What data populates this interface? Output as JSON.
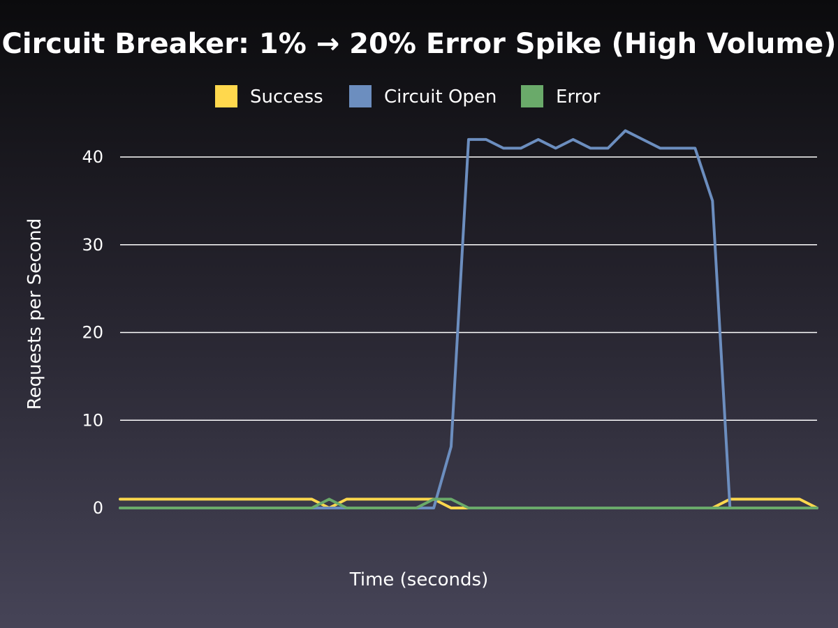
{
  "chart_data": {
    "type": "line",
    "title": "Circuit Breaker: 1% → 20% Error Spike (High Volume)",
    "xlabel": "Time (seconds)",
    "ylabel": "Requests per Second",
    "ylim": [
      0,
      45
    ],
    "yticks": [
      0,
      10,
      20,
      30,
      40
    ],
    "xlim": [
      0,
      40
    ],
    "grid": true,
    "legend_position": "top-center",
    "x": [
      0,
      1,
      2,
      3,
      4,
      5,
      6,
      7,
      8,
      9,
      10,
      11,
      12,
      13,
      14,
      15,
      16,
      17,
      18,
      19,
      20,
      21,
      22,
      23,
      24,
      25,
      26,
      27,
      28,
      29,
      30,
      31,
      32,
      33,
      34,
      35,
      36,
      37,
      38,
      39,
      40
    ],
    "series": [
      {
        "name": "Success",
        "color": "#ffd84d",
        "values": [
          1,
          1,
          1,
          1,
          1,
          1,
          1,
          1,
          1,
          1,
          1,
          1,
          0,
          1,
          1,
          1,
          1,
          1,
          1,
          0,
          0,
          0,
          0,
          0,
          0,
          0,
          0,
          0,
          0,
          0,
          0,
          0,
          0,
          0,
          0,
          1,
          1,
          1,
          1,
          1,
          0
        ]
      },
      {
        "name": "Circuit Open",
        "color": "#6c8ebf",
        "values": [
          0,
          0,
          0,
          0,
          0,
          0,
          0,
          0,
          0,
          0,
          0,
          0,
          0,
          0,
          0,
          0,
          0,
          0,
          0,
          7,
          42,
          42,
          41,
          41,
          42,
          41,
          42,
          41,
          41,
          43,
          42,
          41,
          41,
          41,
          35,
          0,
          0,
          0,
          0,
          0,
          0
        ]
      },
      {
        "name": "Error",
        "color": "#6aaa6a",
        "values": [
          0,
          0,
          0,
          0,
          0,
          0,
          0,
          0,
          0,
          0,
          0,
          0,
          1,
          0,
          0,
          0,
          0,
          0,
          1,
          1,
          0,
          0,
          0,
          0,
          0,
          0,
          0,
          0,
          0,
          0,
          0,
          0,
          0,
          0,
          0,
          0,
          0,
          0,
          0,
          0,
          0
        ]
      }
    ]
  }
}
